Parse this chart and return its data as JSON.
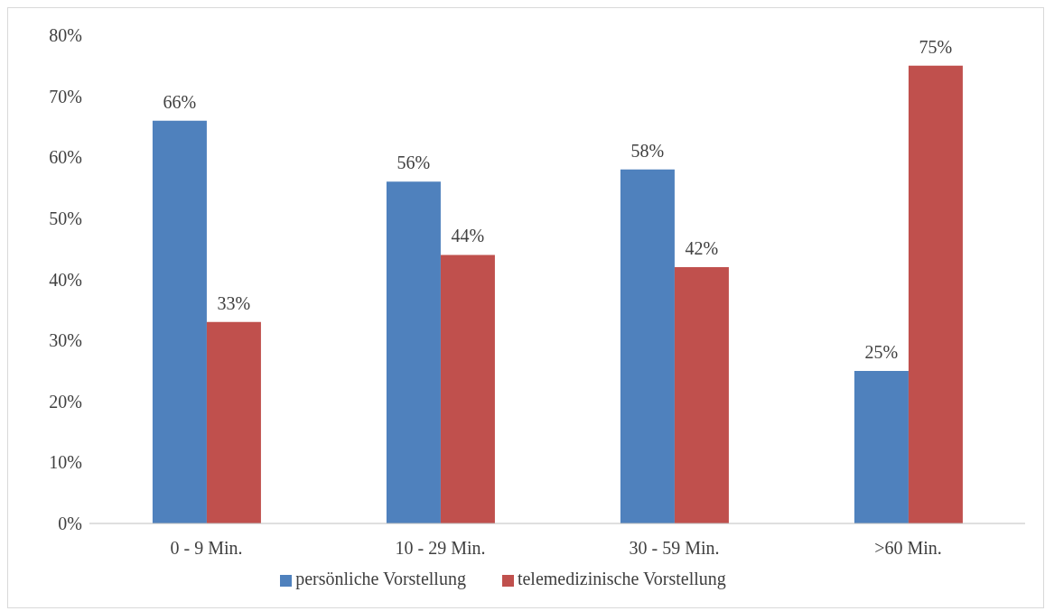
{
  "chart_data": {
    "type": "bar",
    "categories": [
      "0 - 9 Min.",
      "10 - 29 Min.",
      "30 - 59 Min.",
      ">60 Min."
    ],
    "series": [
      {
        "name": "persönliche Vorstellung",
        "color": "#4f81bd",
        "values": [
          66,
          56,
          58,
          25
        ],
        "value_labels": [
          "66%",
          "56%",
          "58%",
          "25%"
        ]
      },
      {
        "name": "telemedizinische Vorstellung",
        "color": "#c0504d",
        "values": [
          33,
          44,
          42,
          75
        ],
        "value_labels": [
          "33%",
          "44%",
          "42%",
          "75%"
        ]
      }
    ],
    "ylim": [
      0,
      80
    ],
    "yticks": [
      {
        "value": 0,
        "label": "0%"
      },
      {
        "value": 10,
        "label": "10%"
      },
      {
        "value": 20,
        "label": "20%"
      },
      {
        "value": 30,
        "label": "30%"
      },
      {
        "value": 40,
        "label": "40%"
      },
      {
        "value": 50,
        "label": "50%"
      },
      {
        "value": 60,
        "label": "60%"
      },
      {
        "value": 70,
        "label": "70%"
      },
      {
        "value": 80,
        "label": "80%"
      }
    ],
    "grid": false,
    "legend": "bottom"
  }
}
